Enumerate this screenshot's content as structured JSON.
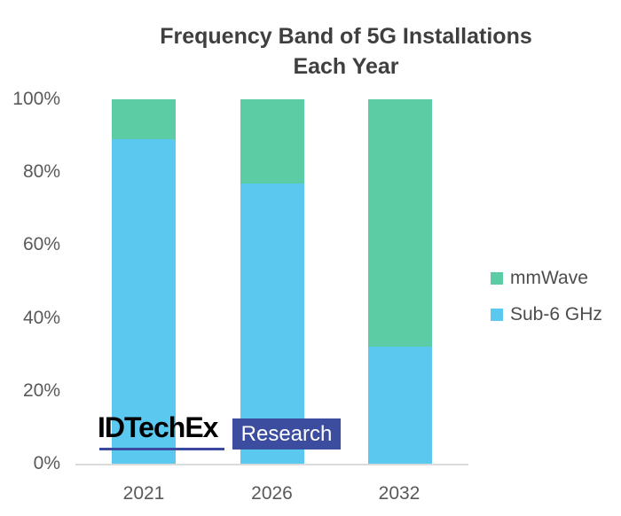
{
  "title": {
    "line1": "Frequency Band of 5G Installations",
    "line2": "Each Year"
  },
  "chart_data": {
    "type": "bar",
    "stacked": true,
    "title": "Frequency Band of 5G Installations Each Year",
    "categories": [
      "2021",
      "2026",
      "2032"
    ],
    "series": [
      {
        "name": "Sub-6 GHz",
        "color": "#5BC8F0",
        "values": [
          89,
          77,
          32
        ]
      },
      {
        "name": "mmWave",
        "color": "#5CCCA5",
        "values": [
          11,
          23,
          68
        ]
      }
    ],
    "unit": "%",
    "xlabel": "",
    "ylabel": "",
    "ylim": [
      0,
      100
    ],
    "y_ticks": [
      "0%",
      "20%",
      "40%",
      "60%",
      "80%",
      "100%"
    ],
    "grid": false,
    "legend_position": "right-middle",
    "bar_order_bottom_to_top": [
      "Sub-6 GHz",
      "mmWave"
    ]
  },
  "legend": {
    "items": [
      {
        "label": "mmWave",
        "color": "#5CCCA5"
      },
      {
        "label": "Sub-6 GHz",
        "color": "#5BC8F0"
      }
    ]
  },
  "watermark": {
    "brand": "IDTechEx",
    "suffix": "Research",
    "underline_color": "#3B4AA0",
    "badge_color": "#3C4C9E"
  },
  "colors": {
    "background": "#FFFFFF",
    "title_text": "#3F3F3F",
    "axis_label_text": "#595959",
    "axis_line": "#DBDBDB",
    "legend_text": "#4D4D4D"
  }
}
